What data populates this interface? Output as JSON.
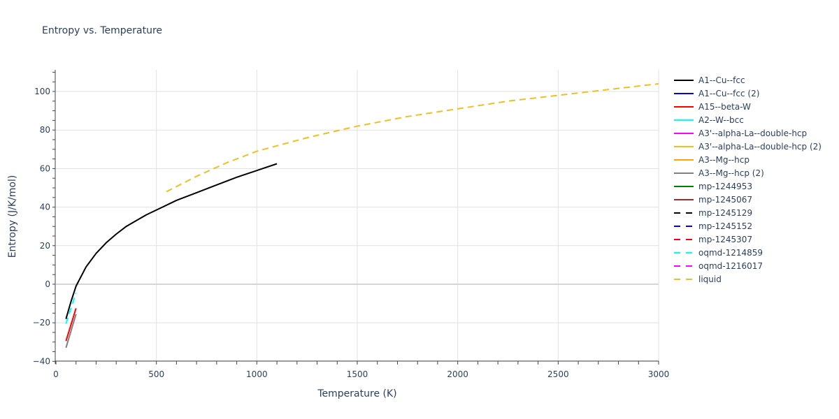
{
  "chart_data": {
    "type": "line",
    "title": "Entropy vs. Temperature",
    "xlabel": "Temperature (K)",
    "ylabel": "Entropy (J/K/mol)",
    "xlim": [
      0,
      3000
    ],
    "ylim": [
      -40,
      111
    ],
    "x_ticks": [
      0,
      500,
      1000,
      1500,
      2000,
      2500,
      3000
    ],
    "y_ticks": [
      -40,
      -20,
      0,
      20,
      40,
      60,
      80,
      100
    ],
    "grid": true,
    "legend_position": "right",
    "series": [
      {
        "name": "A1--Cu--fcc",
        "color": "#000000",
        "dash": "solid",
        "x": [
          50,
          75,
          100,
          150,
          200,
          250,
          300,
          350,
          400,
          450,
          500,
          600,
          700,
          800,
          900,
          1000,
          1100
        ],
        "y": [
          -18,
          -9,
          -1,
          9,
          16,
          21.5,
          26,
          30,
          33,
          36,
          38.5,
          43.5,
          47.5,
          51.5,
          55.5,
          59,
          62.5
        ]
      },
      {
        "name": "A1--Cu--fcc (2)",
        "color": "#0000ff",
        "dash": "solid",
        "x": [],
        "y": []
      },
      {
        "name": "A15--beta-W",
        "color": "#ff0000",
        "dash": "solid",
        "x": [
          50,
          100
        ],
        "y": [
          -29.5,
          -12.5
        ]
      },
      {
        "name": "A2--W--bcc",
        "color": "#00ffff",
        "dash": "solid",
        "x": [],
        "y": []
      },
      {
        "name": "A3'--alpha-La--double-hcp",
        "color": "#ff00ff",
        "dash": "solid",
        "x": [],
        "y": []
      },
      {
        "name": "A3'--alpha-La--double-hcp (2)",
        "color": "#f0c020",
        "dash": "solid",
        "x": [],
        "y": []
      },
      {
        "name": "A3--Mg--hcp",
        "color": "#ffa500",
        "dash": "solid",
        "x": [],
        "y": []
      },
      {
        "name": "A3--Mg--hcp (2)",
        "color": "#808080",
        "dash": "solid",
        "x": [
          50,
          100
        ],
        "y": [
          -33,
          -15.5
        ]
      },
      {
        "name": "mp-1244953",
        "color": "#008000",
        "dash": "solid",
        "x": [],
        "y": []
      },
      {
        "name": "mp-1245067",
        "color": "#a52a2a",
        "dash": "solid",
        "x": [],
        "y": []
      },
      {
        "name": "mp-1245129",
        "color": "#000000",
        "dash": "dash",
        "x": [],
        "y": []
      },
      {
        "name": "mp-1245152",
        "color": "#0000ff",
        "dash": "dash",
        "x": [],
        "y": []
      },
      {
        "name": "mp-1245307",
        "color": "#ff0000",
        "dash": "dash",
        "x": [],
        "y": []
      },
      {
        "name": "oqmd-1214859",
        "color": "#00ffff",
        "dash": "dash",
        "x": [
          50,
          100
        ],
        "y": [
          -20.5,
          -4.5
        ]
      },
      {
        "name": "oqmd-1216017",
        "color": "#ff00ff",
        "dash": "dash",
        "x": [],
        "y": []
      },
      {
        "name": "liquid",
        "color": "#f0c020",
        "dash": "dash",
        "x": [
          550,
          700,
          850,
          1000,
          1250,
          1500,
          1750,
          2000,
          2250,
          2500,
          2750,
          3000
        ],
        "y": [
          48,
          56,
          63,
          69,
          76,
          82,
          87,
          91,
          95,
          98,
          101,
          104
        ]
      }
    ]
  }
}
